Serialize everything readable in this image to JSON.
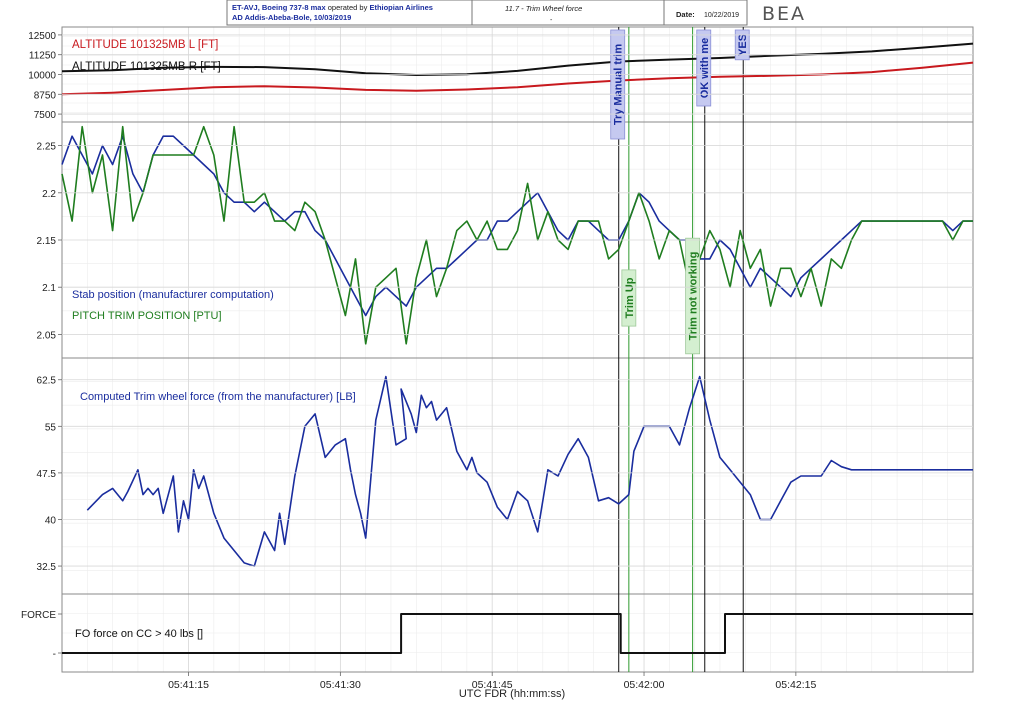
{
  "header": {
    "line1_prefix": "ET-AVJ, Boeing 737-8 max",
    "line1_mid": " operated by ",
    "line1_airline": "Ethiopian Airlines",
    "line2": "AD Addis-Abeba-Bole, 10/03/2019",
    "title": "11.7 - Trim Wheel force",
    "dash": "-",
    "date_label": "Date:",
    "date_value": "10/22/2019",
    "logo": "BEA"
  },
  "chart_data": [
    {
      "type": "line",
      "ylim": [
        7000,
        13000
      ],
      "yticks": [
        "12500",
        "11250",
        "10000",
        "8750",
        "7500"
      ],
      "ytick_values": [
        12500,
        11250,
        10000,
        8750,
        7500
      ],
      "series": [
        {
          "name": "ALTITUDE 101325MB L [FT]",
          "color": "#c8191e",
          "x": [
            0,
            5,
            10,
            15,
            20,
            25,
            30,
            35,
            40,
            45,
            50,
            55,
            60,
            65,
            70,
            75,
            80,
            85,
            90
          ],
          "y": [
            8750,
            8850,
            9020,
            9200,
            9260,
            9180,
            9030,
            8980,
            9050,
            9200,
            9430,
            9620,
            9760,
            9860,
            9920,
            10000,
            10150,
            10430,
            10750
          ]
        },
        {
          "name": "ALTITUDE 101325MB R [FT]",
          "color": "#111111",
          "x": [
            0,
            5,
            10,
            15,
            20,
            25,
            30,
            35,
            40,
            45,
            50,
            55,
            60,
            65,
            70,
            75,
            80,
            85,
            90
          ],
          "y": [
            10200,
            10270,
            10420,
            10480,
            10470,
            10330,
            10080,
            9970,
            10020,
            10230,
            10560,
            10820,
            10940,
            11040,
            11180,
            11300,
            11460,
            11700,
            11950
          ]
        }
      ]
    },
    {
      "type": "line",
      "ylim": [
        2.025,
        2.275
      ],
      "yticks": [
        "2.25",
        "2.2",
        "2.15",
        "2.1",
        "2.05"
      ],
      "ytick_values": [
        2.25,
        2.2,
        2.15,
        2.1,
        2.05
      ],
      "series": [
        {
          "name": "Stab position (manufacturer computation)",
          "color": "#1a2d9e",
          "x": [
            0,
            1,
            2,
            3,
            4,
            5,
            6,
            7,
            8,
            9,
            10,
            11,
            12,
            13,
            14,
            15,
            16,
            17,
            18,
            19,
            20,
            21,
            22,
            23,
            24,
            25,
            26,
            27,
            28,
            29,
            30,
            31,
            32,
            33,
            34,
            35,
            36,
            37,
            38,
            39,
            40,
            41,
            42,
            43,
            44,
            45,
            46,
            47,
            48,
            49,
            50,
            51,
            52,
            53,
            54,
            55,
            56,
            57,
            58,
            59,
            60,
            61,
            62,
            63,
            64,
            65,
            66,
            67,
            68,
            69,
            70,
            71,
            72,
            73,
            74,
            75,
            76,
            77,
            78,
            79,
            80,
            81,
            82,
            83,
            84,
            85,
            86,
            87,
            88,
            89,
            90
          ],
          "y": [
            2.23,
            2.26,
            2.24,
            2.22,
            2.25,
            2.23,
            2.26,
            2.22,
            2.2,
            2.24,
            2.26,
            2.26,
            2.25,
            2.24,
            2.23,
            2.22,
            2.2,
            2.19,
            2.19,
            2.18,
            2.19,
            2.18,
            2.17,
            2.18,
            2.18,
            2.16,
            2.15,
            2.13,
            2.11,
            2.09,
            2.07,
            2.09,
            2.1,
            2.09,
            2.08,
            2.1,
            2.11,
            2.12,
            2.12,
            2.13,
            2.14,
            2.15,
            2.15,
            2.17,
            2.17,
            2.18,
            2.19,
            2.2,
            2.18,
            2.16,
            2.15,
            2.17,
            2.17,
            2.16,
            2.15,
            2.15,
            2.17,
            2.2,
            2.19,
            2.17,
            2.16,
            2.15,
            2.15,
            2.13,
            2.13,
            2.15,
            2.14,
            2.12,
            2.1,
            2.12,
            2.11,
            2.1,
            2.09,
            2.11,
            2.12,
            2.13,
            2.14,
            2.15,
            2.16,
            2.17,
            2.17,
            2.17,
            2.17,
            2.17,
            2.17,
            2.17,
            2.17,
            2.17,
            2.16,
            2.17,
            2.17
          ]
        },
        {
          "name": "PITCH TRIM POSITION [PTU]",
          "color": "#1f7d1f",
          "x": [
            0,
            1,
            2,
            3,
            4,
            5,
            6,
            7,
            8,
            9,
            10,
            11,
            12,
            13,
            14,
            15,
            16,
            17,
            18,
            19,
            20,
            21,
            22,
            23,
            24,
            25,
            26,
            27,
            28,
            29,
            30,
            31,
            32,
            33,
            34,
            35,
            36,
            37,
            38,
            39,
            40,
            41,
            42,
            43,
            44,
            45,
            46,
            47,
            48,
            49,
            50,
            51,
            52,
            53,
            54,
            55,
            56,
            57,
            58,
            59,
            60,
            61,
            62,
            63,
            64,
            65,
            66,
            67,
            68,
            69,
            70,
            71,
            72,
            73,
            74,
            75,
            76,
            77,
            78,
            79,
            80,
            81,
            82,
            83,
            84,
            85,
            86,
            87,
            88,
            89,
            90
          ],
          "y": [
            2.22,
            2.17,
            2.27,
            2.2,
            2.24,
            2.16,
            2.27,
            2.17,
            2.2,
            2.24,
            2.24,
            2.24,
            2.24,
            2.24,
            2.27,
            2.24,
            2.17,
            2.27,
            2.19,
            2.19,
            2.2,
            2.17,
            2.17,
            2.16,
            2.19,
            2.18,
            2.15,
            2.11,
            2.07,
            2.13,
            2.04,
            2.1,
            2.11,
            2.12,
            2.04,
            2.11,
            2.15,
            2.09,
            2.12,
            2.16,
            2.17,
            2.15,
            2.17,
            2.14,
            2.14,
            2.16,
            2.21,
            2.15,
            2.18,
            2.15,
            2.14,
            2.17,
            2.17,
            2.17,
            2.13,
            2.14,
            2.17,
            2.2,
            2.17,
            2.13,
            2.16,
            2.15,
            2.1,
            2.13,
            2.16,
            2.14,
            2.1,
            2.16,
            2.12,
            2.14,
            2.08,
            2.12,
            2.12,
            2.09,
            2.12,
            2.08,
            2.13,
            2.12,
            2.15,
            2.17,
            2.17,
            2.17,
            2.17,
            2.17,
            2.17,
            2.17,
            2.17,
            2.17,
            2.15,
            2.17,
            2.17
          ]
        }
      ]
    },
    {
      "type": "line",
      "ylim": [
        28,
        66
      ],
      "yticks": [
        "62.5",
        "55",
        "47.5",
        "40",
        "32.5"
      ],
      "ytick_values": [
        62.5,
        55,
        47.5,
        40,
        32.5
      ],
      "series": [
        {
          "name": "Computed Trim wheel force (from the manufacturer) [LB]",
          "color": "#1a2d9e",
          "x": [
            2.5,
            4,
            5,
            6,
            6.5,
            7.5,
            8,
            8.5,
            9,
            9.5,
            10,
            10.5,
            11,
            11.5,
            12,
            12.5,
            13,
            13.5,
            14,
            15,
            16,
            17,
            18,
            19,
            20,
            21,
            21.5,
            22,
            23,
            24,
            25,
            26,
            27,
            28,
            28.5,
            29,
            29.5,
            30,
            31,
            32,
            33,
            34,
            33.5,
            34.5,
            35,
            35.5,
            36,
            36.5,
            37,
            38,
            39,
            40,
            40.5,
            41,
            42,
            43,
            44,
            45,
            46,
            47,
            48,
            49,
            50,
            51,
            52,
            53,
            54,
            54.5,
            55,
            56,
            56.5,
            57,
            57.5,
            58,
            59,
            60,
            61,
            62,
            63,
            64,
            65,
            66,
            67,
            68,
            69,
            70,
            71,
            72,
            73,
            74,
            75,
            76,
            77,
            78,
            79,
            80,
            81,
            82,
            83,
            84,
            85,
            86,
            87,
            88,
            88.5,
            89,
            90
          ],
          "y": [
            41.5,
            44,
            45,
            43,
            44.5,
            48,
            44,
            45,
            44,
            45,
            41,
            44,
            47,
            38,
            43,
            40,
            48,
            45,
            47,
            41,
            37,
            35,
            33,
            32.5,
            38,
            35,
            41,
            36,
            47,
            55,
            57,
            50,
            52,
            53,
            48,
            44,
            41,
            37,
            56,
            63,
            52,
            53,
            61,
            57,
            54,
            60,
            58,
            59,
            56,
            58,
            51,
            48,
            50,
            47.5,
            46,
            42,
            40,
            44.5,
            43,
            38,
            48,
            47,
            50.5,
            53,
            50,
            43,
            43.5,
            43,
            42.5,
            44,
            51,
            53,
            55,
            55,
            55,
            55,
            52,
            58,
            63,
            56,
            50,
            48,
            46,
            44,
            40,
            40,
            43,
            46,
            47,
            47,
            47,
            49.5,
            48.5,
            48,
            48,
            48,
            48,
            48,
            48,
            48,
            48,
            48,
            48,
            48,
            48,
            48,
            48
          ]
        }
      ]
    },
    {
      "type": "line",
      "yticks": [
        "FORCE",
        "-"
      ],
      "series": [
        {
          "name": "FO force on CC > 40 lbs []",
          "color": "#111111",
          "x": [
            0,
            33.5,
            33.5,
            55.2,
            55.2,
            65.5,
            65.5,
            90
          ],
          "y": [
            0,
            0,
            1,
            1,
            0,
            0,
            1,
            1
          ]
        }
      ]
    }
  ],
  "x_axis": {
    "label": "UTC FDR (hh:mm:ss)",
    "ticks": [
      "05:41:15",
      "05:41:30",
      "05:41:45",
      "05:42:00",
      "05:42:15"
    ],
    "tick_values": [
      12.5,
      27.5,
      42.5,
      57.5,
      72.5
    ],
    "xlim": [
      0,
      90
    ]
  },
  "markers": [
    {
      "label": "Try Manual trim",
      "x": 55.0,
      "type": "event",
      "color": "#111111"
    },
    {
      "label": "Trim Up",
      "x": 56.0,
      "type": "pilot",
      "color": "#2e9a2e"
    },
    {
      "label": "Trim not working",
      "x": 62.3,
      "type": "pilot",
      "color": "#2e9a2e"
    },
    {
      "label": "OK with me",
      "x": 63.5,
      "type": "event",
      "color": "#111111"
    },
    {
      "label": "YES",
      "x": 67.3,
      "type": "event",
      "color": "#111111"
    }
  ],
  "colors": {
    "grid": "#d8d8d8",
    "frame": "#8a8a8a",
    "marker_box_blue": "#c5c9f0",
    "marker_box_green": "#d4efd0"
  }
}
